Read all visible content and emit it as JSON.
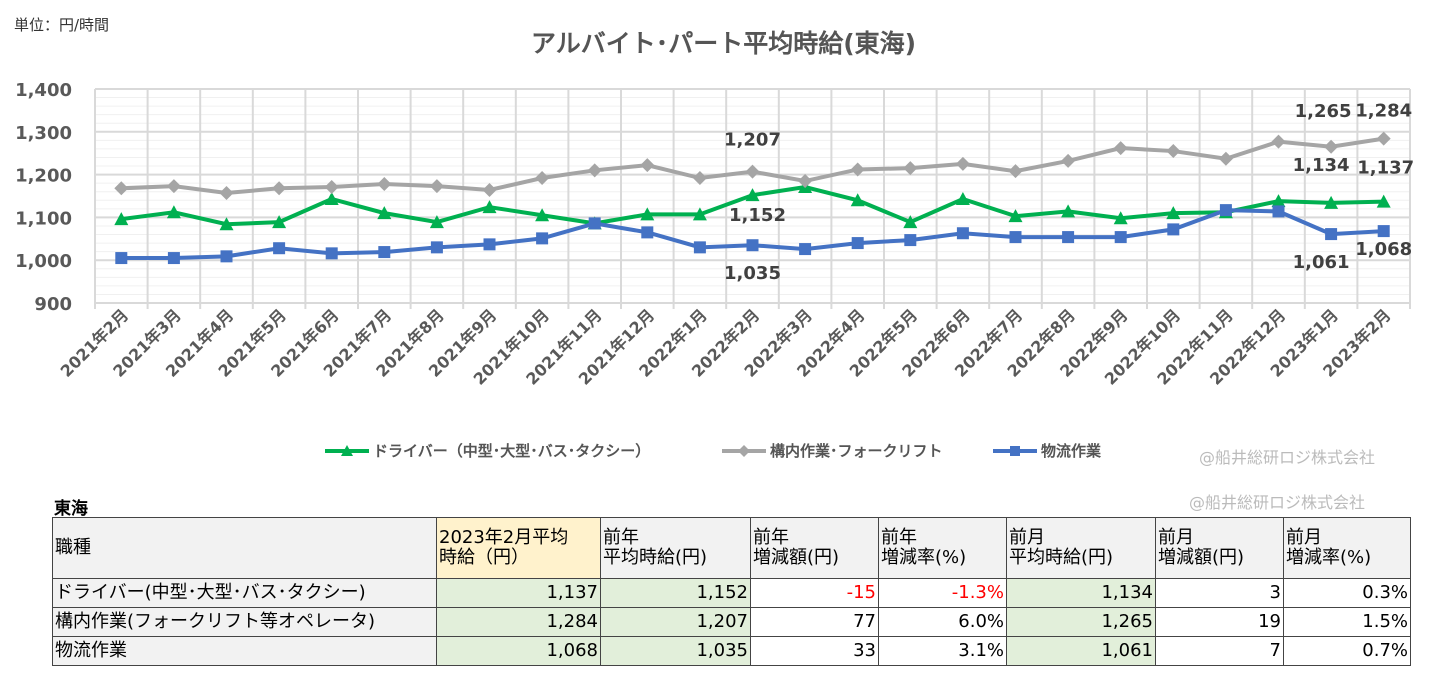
{
  "unit_label": "単位：円/時間",
  "watermark": "@船井総研ロジ株式会社",
  "chart_data": {
    "type": "line",
    "title": "アルバイト･パート平均時給(東海)",
    "xlabel": "",
    "ylabel": "",
    "ylim": [
      900,
      1400
    ],
    "yticks": [
      "900",
      "1,000",
      "1,100",
      "1,200",
      "1,300",
      "1,400"
    ],
    "grid": true,
    "legend_position": "bottom",
    "categories": [
      "2021年2月",
      "2021年3月",
      "2021年4月",
      "2021年5月",
      "2021年6月",
      "2021年7月",
      "2021年8月",
      "2021年9月",
      "2021年10月",
      "2021年11月",
      "2021年12月",
      "2022年1月",
      "2022年2月",
      "2022年3月",
      "2022年4月",
      "2022年5月",
      "2022年6月",
      "2022年7月",
      "2022年8月",
      "2022年9月",
      "2022年10月",
      "2022年11月",
      "2022年12月",
      "2023年1月",
      "2023年2月"
    ],
    "series": [
      {
        "name": "ドライバー（中型･大型･バス･タクシー）",
        "color": "#00b050",
        "marker": "triangle",
        "values": [
          1096,
          1112,
          1084,
          1089,
          1143,
          1110,
          1089,
          1124,
          1105,
          1086,
          1107,
          1107,
          1152,
          1171,
          1140,
          1089,
          1143,
          1103,
          1114,
          1098,
          1110,
          1112,
          1138,
          1134,
          1137
        ],
        "labels": [
          {
            "index": 12,
            "text": "1,152"
          },
          {
            "index": 23,
            "text": "1,134"
          },
          {
            "index": 24,
            "text": "1,137"
          }
        ]
      },
      {
        "name": "構内作業･フォークリフト",
        "color": "#a5a5a5",
        "marker": "diamond",
        "values": [
          1168,
          1173,
          1157,
          1168,
          1171,
          1178,
          1173,
          1164,
          1192,
          1210,
          1222,
          1192,
          1207,
          1185,
          1212,
          1215,
          1225,
          1208,
          1232,
          1262,
          1255,
          1237,
          1277,
          1265,
          1284
        ],
        "labels": [
          {
            "index": 12,
            "text": "1,207"
          },
          {
            "index": 23,
            "text": "1,265"
          },
          {
            "index": 24,
            "text": "1,284"
          }
        ]
      },
      {
        "name": "物流作業",
        "color": "#4472c4",
        "marker": "square",
        "values": [
          1005,
          1005,
          1009,
          1028,
          1016,
          1019,
          1030,
          1037,
          1051,
          1086,
          1065,
          1030,
          1035,
          1026,
          1040,
          1047,
          1063,
          1054,
          1054,
          1054,
          1072,
          1117,
          1114,
          1061,
          1068
        ],
        "labels": [
          {
            "index": 12,
            "text": "1,035"
          },
          {
            "index": 23,
            "text": "1,061"
          },
          {
            "index": 24,
            "text": "1,068"
          }
        ]
      }
    ]
  },
  "table": {
    "region": "東海",
    "headers": [
      "職種",
      "2023年2月平均\n時給（円）",
      "前年\n平均時給(円)",
      "前年\n増減額(円)",
      "前年\n増減率(%)",
      "前月\n平均時給(円)",
      "前月\n増減額(円)",
      "前月\n増減率(%)"
    ],
    "rows": [
      [
        "ドライバー(中型･大型･バス･タクシー)",
        "1,137",
        "1,152",
        "-15",
        "-1.3%",
        "1,134",
        "3",
        "0.3%"
      ],
      [
        "構内作業(フォークリフト等オペレータ)",
        "1,284",
        "1,207",
        "77",
        "6.0%",
        "1,265",
        "19",
        "1.5%"
      ],
      [
        "物流作業",
        "1,068",
        "1,035",
        "33",
        "3.1%",
        "1,061",
        "7",
        "0.7%"
      ]
    ]
  }
}
